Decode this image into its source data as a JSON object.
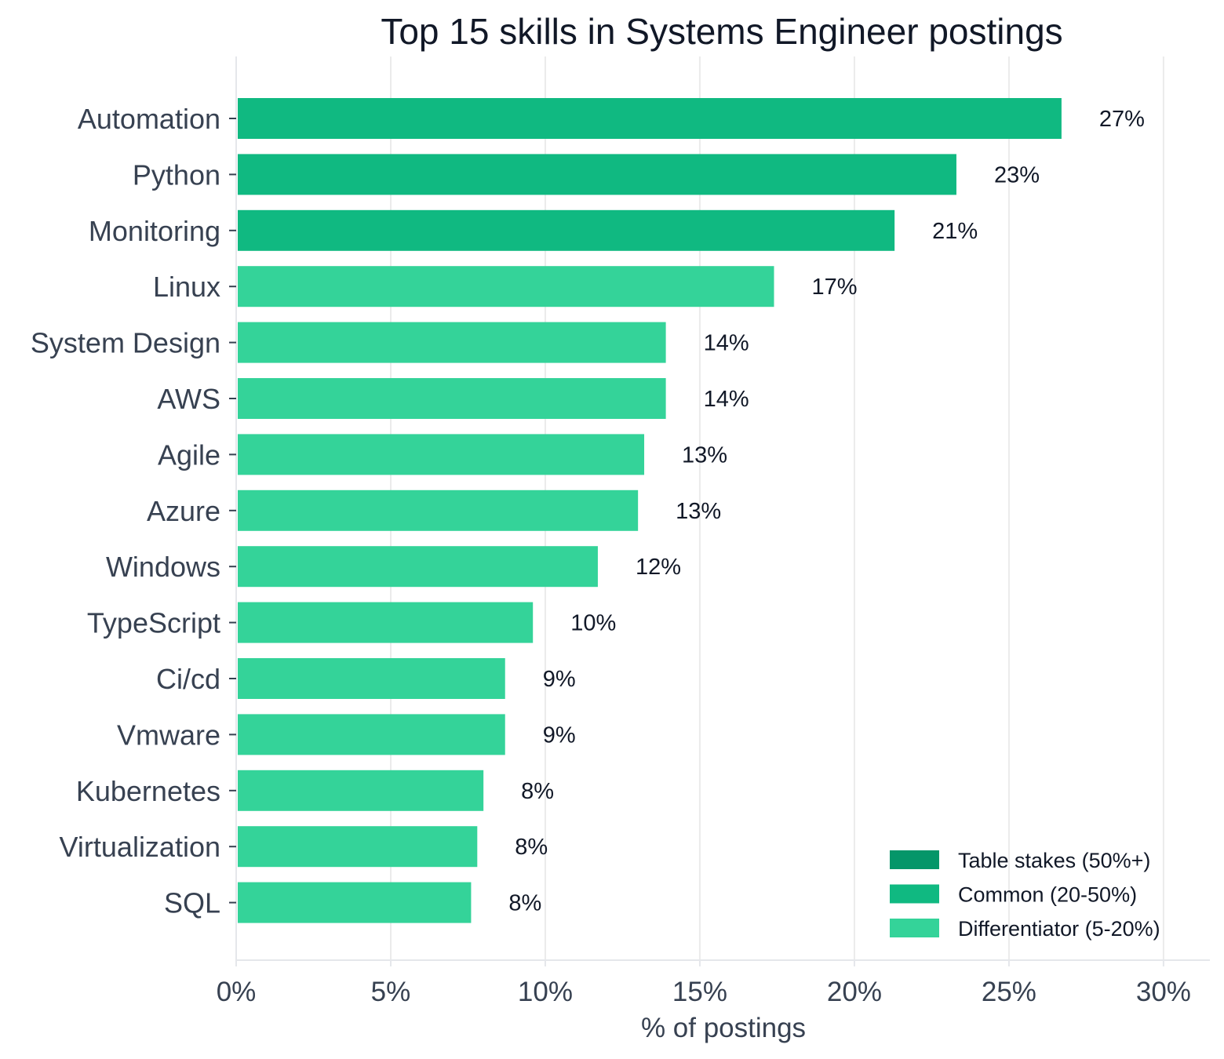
{
  "chart_data": {
    "type": "bar",
    "orientation": "horizontal",
    "title": "Top 15 skills in Systems Engineer postings",
    "xlabel": "% of postings",
    "ylabel": "",
    "xlim": [
      0,
      31.5
    ],
    "x_ticks": [
      0,
      5,
      10,
      15,
      20,
      25,
      30
    ],
    "x_tick_labels": [
      "0%",
      "5%",
      "10%",
      "15%",
      "20%",
      "25%",
      "30%"
    ],
    "grid": "vertical",
    "legend_position": "bottom-right",
    "categories": [
      "Automation",
      "Python",
      "Monitoring",
      "Linux",
      "System Design",
      "AWS",
      "Agile",
      "Azure",
      "Windows",
      "TypeScript",
      "Ci/cd",
      "Vmware",
      "Kubernetes",
      "Virtualization",
      "SQL"
    ],
    "values": [
      26.7,
      23.3,
      21.3,
      17.4,
      13.9,
      13.9,
      13.2,
      13.0,
      11.7,
      9.6,
      8.7,
      8.7,
      8.0,
      7.8,
      7.6
    ],
    "value_labels": [
      "27%",
      "23%",
      "21%",
      "17%",
      "14%",
      "14%",
      "13%",
      "13%",
      "12%",
      "10%",
      "9%",
      "9%",
      "8%",
      "8%",
      "8%"
    ],
    "tiers": [
      "common",
      "common",
      "common",
      "differentiator",
      "differentiator",
      "differentiator",
      "differentiator",
      "differentiator",
      "differentiator",
      "differentiator",
      "differentiator",
      "differentiator",
      "differentiator",
      "differentiator",
      "differentiator"
    ],
    "legend": [
      {
        "key": "table_stakes",
        "label": "Table stakes (50%+)",
        "color": "#059669"
      },
      {
        "key": "common",
        "label": "Common (20-50%)",
        "color": "#10b981"
      },
      {
        "key": "differentiator",
        "label": "Differentiator (5-20%)",
        "color": "#34d399"
      }
    ],
    "colors": {
      "table_stakes": "#059669",
      "common": "#10b981",
      "differentiator": "#34d399",
      "grid": "#ebebeb",
      "axis": "#e5e7eb"
    }
  }
}
